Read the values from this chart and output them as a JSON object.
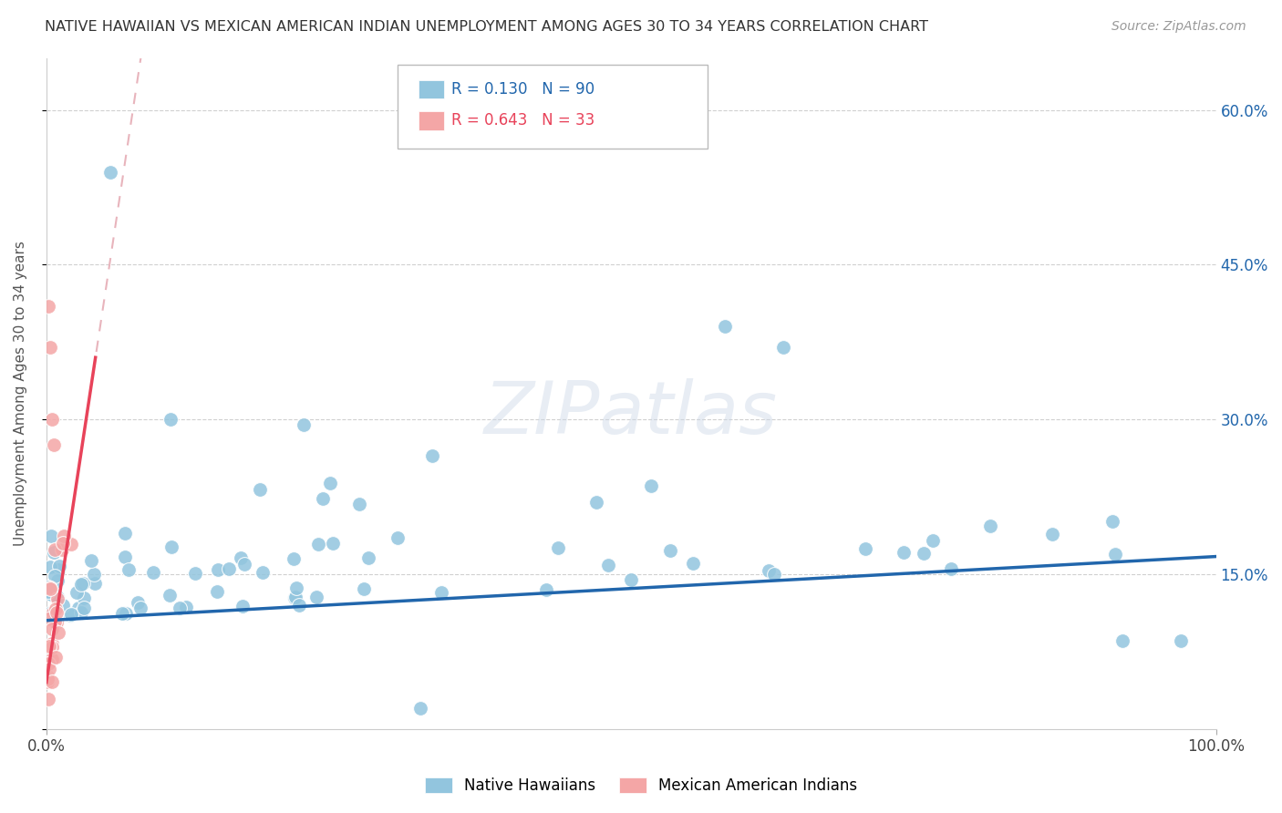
{
  "title": "NATIVE HAWAIIAN VS MEXICAN AMERICAN INDIAN UNEMPLOYMENT AMONG AGES 30 TO 34 YEARS CORRELATION CHART",
  "source": "Source: ZipAtlas.com",
  "ylabel": "Unemployment Among Ages 30 to 34 years",
  "xlim": [
    0,
    1.0
  ],
  "ylim": [
    0,
    0.65
  ],
  "blue_R": "0.130",
  "blue_N": "90",
  "pink_R": "0.643",
  "pink_N": "33",
  "blue_color": "#92c5de",
  "pink_color": "#f4a6a6",
  "blue_line_color": "#2166ac",
  "pink_line_color": "#e8435a",
  "pink_dash_color": "#e8b4bc",
  "watermark": "ZIPatlas",
  "legend_label_blue": "Native Hawaiians",
  "legend_label_pink": "Mexican American Indians",
  "blue_intercept": 0.105,
  "blue_slope": 0.062,
  "pink_intercept": 0.045,
  "pink_slope": 7.5
}
